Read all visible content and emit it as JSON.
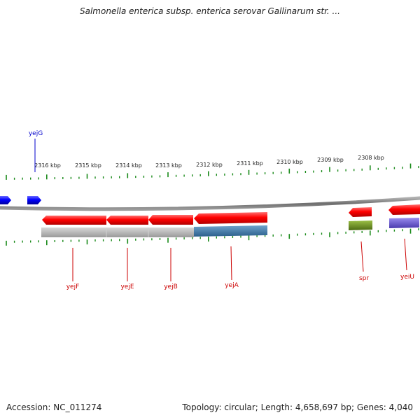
{
  "title": "Salmonella enterica subsp. enterica serovar Gallinarum str. ...",
  "footer": {
    "accession": "Accession: NC_011274",
    "summary": "Topology: circular; Length: 4,658,697 bp; Genes: 4,040"
  },
  "colors": {
    "background": "#ffffff",
    "backbone": "#808080",
    "scale_tick": "#1a8a1a",
    "forward_gene": "#0000ff",
    "reverse_gene": "#ff0000",
    "reverse_label": "#cc0000",
    "forward_label": "#0000cc",
    "operon_gray": "#b8b8b8",
    "operon_blue": "#3f7fb2",
    "feature_green": "#6b8e23",
    "feature_purple": "#6a5acd"
  },
  "scale_labels": [
    "2316 kbp",
    "2315 kbp",
    "2314 kbp",
    "2313 kbp",
    "2312 kbp",
    "2311 kbp",
    "2310 kbp",
    "2309 kbp",
    "2308 kbp"
  ],
  "genes": [
    {
      "id": "yejG",
      "label": "yejG",
      "strand": "forward"
    },
    {
      "id": "yejF",
      "label": "yejF",
      "strand": "reverse"
    },
    {
      "id": "yejE",
      "label": "yejE",
      "strand": "reverse"
    },
    {
      "id": "yejB",
      "label": "yejB",
      "strand": "reverse"
    },
    {
      "id": "yejA",
      "label": "yejA",
      "strand": "reverse"
    },
    {
      "id": "spr",
      "label": "spr",
      "strand": "reverse"
    },
    {
      "id": "yeiU",
      "label": "yeiU",
      "strand": "reverse"
    }
  ]
}
